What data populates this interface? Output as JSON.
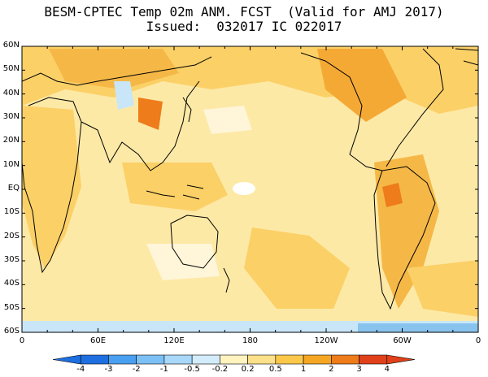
{
  "title": {
    "line1": "BESM-CPTEC Temp 02m ANM. FCST  (Valid for AMJ 2017)",
    "line2": "Issued:  032017 IC 022017"
  },
  "map": {
    "lat_labels": [
      "60N",
      "50N",
      "40N",
      "30N",
      "20N",
      "10N",
      "EQ",
      "10S",
      "20S",
      "30S",
      "40S",
      "50S",
      "60S"
    ],
    "lon_labels": [
      "0",
      "60E",
      "120E",
      "180",
      "120W",
      "60W",
      "0"
    ],
    "lon_values": [
      0,
      60,
      120,
      180,
      240,
      300,
      360
    ],
    "lat_values": [
      60,
      50,
      40,
      30,
      20,
      10,
      0,
      -10,
      -20,
      -30,
      -40,
      -50,
      -60
    ]
  },
  "colorbar": {
    "labels": [
      "-4",
      "-3",
      "-2",
      "-1",
      "-0.5",
      "-0.2",
      "0.2",
      "0.5",
      "1",
      "2",
      "3",
      "4"
    ],
    "colors": [
      "#1e6fe0",
      "#4aa0f0",
      "#7cc0f5",
      "#a8d8fa",
      "#d2ecfb",
      "#ffffff",
      "#fff3c0",
      "#fde18a",
      "#fbc84a",
      "#f5a623",
      "#ee7c1a",
      "#e0401a"
    ]
  },
  "palette": {
    "ocean_base": "#fde9a6",
    "warm": "#fbd067",
    "hot": "#f5a935",
    "cold_light": "#c8e6f8",
    "cold": "#88c3ee",
    "coast": "#000000"
  }
}
